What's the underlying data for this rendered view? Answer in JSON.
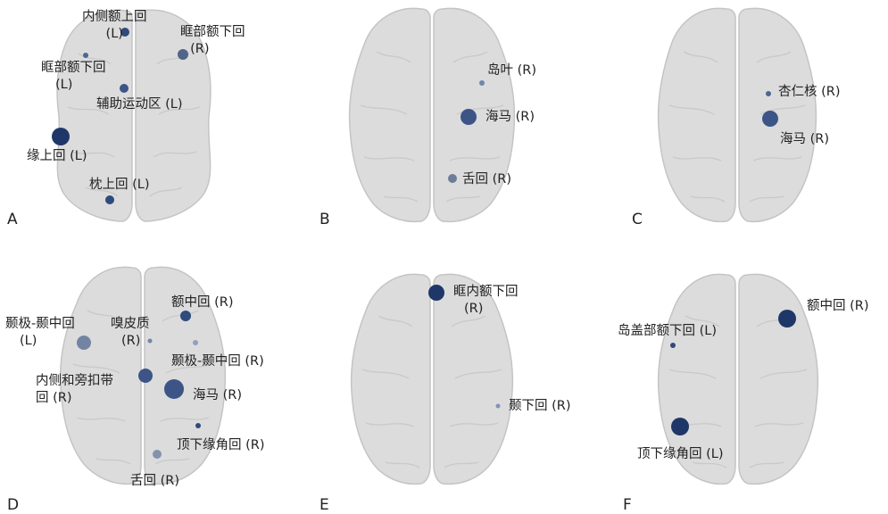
{
  "panels": {
    "A": {
      "letter": "A",
      "labels": [
        {
          "l1": "内侧额上回",
          "l2": "(L)"
        },
        {
          "l1": "眶部额下回",
          "l2": "(R)"
        },
        {
          "l1": "眶部额下回",
          "l2": "(L)"
        },
        {
          "l1": "辅助运动区 (L)"
        },
        {
          "l1": "缘上回 (L)"
        },
        {
          "l1": "枕上回 (L)"
        }
      ]
    },
    "B": {
      "letter": "B",
      "labels": [
        {
          "l1": "岛叶 (R)"
        },
        {
          "l1": "海马 (R)"
        },
        {
          "l1": "舌回 (R)"
        }
      ]
    },
    "C": {
      "letter": "C",
      "labels": [
        {
          "l1": "杏仁核 (R)"
        },
        {
          "l1": "海马 (R)"
        }
      ]
    },
    "D": {
      "letter": "D",
      "labels": [
        {
          "l1": "额中回 (R)"
        },
        {
          "l1": "颞极-颞中回",
          "l2": "(L)"
        },
        {
          "l1": "嗅皮质",
          "l2": "(R)"
        },
        {
          "l1": "颞极-颞中回 (R)"
        },
        {
          "l1": "内侧和旁扣带",
          "l2": "回 (R)"
        },
        {
          "l1": "海马 (R)"
        },
        {
          "l1": "顶下缘角回 (R)"
        },
        {
          "l1": "舌回 (R)"
        }
      ]
    },
    "E": {
      "letter": "E",
      "labels": [
        {
          "l1": "眶内额下回",
          "l2": "(R)"
        },
        {
          "l1": "颞下回 (R)"
        }
      ]
    },
    "F": {
      "letter": "F",
      "labels": [
        {
          "l1": "额中回 (R)"
        },
        {
          "l1": "岛盖部额下回 (L)"
        },
        {
          "l1": "顶下缘角回 (L)"
        }
      ]
    }
  }
}
